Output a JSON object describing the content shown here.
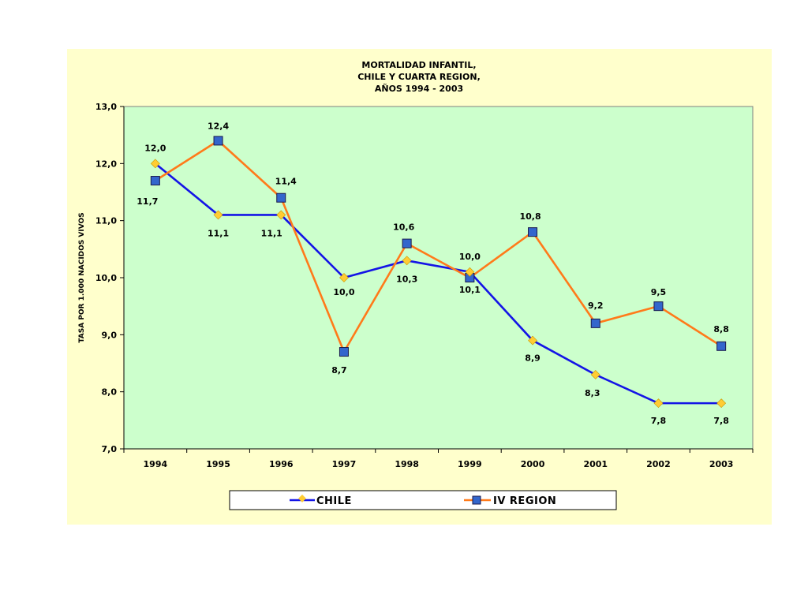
{
  "colors": {
    "outer_background": "#ffffcc",
    "plot_background": "#ccffcc",
    "chile_line": "#1414e6",
    "chile_marker": "#ffcc33",
    "region_line": "#ff7a1a",
    "region_marker": "#3366cc"
  },
  "chart_data": {
    "type": "line",
    "title_lines": [
      "MORTALIDAD INFANTIL,",
      "CHILE Y CUARTA REGION,",
      "AÑOS 1994 - 2003"
    ],
    "ylabel": "TASA POR 1.000 NACIDOS VIVOS",
    "xlabel": "",
    "categories": [
      "1994",
      "1995",
      "1996",
      "1997",
      "1998",
      "1999",
      "2000",
      "2001",
      "2002",
      "2003"
    ],
    "ylim": [
      7.0,
      13.0
    ],
    "yticks": [
      "7,0",
      "8,0",
      "9,0",
      "10,0",
      "11,0",
      "12,0",
      "13,0"
    ],
    "grid": false,
    "legend_position": "bottom",
    "series": [
      {
        "name": "CHILE",
        "values": [
          12.0,
          11.1,
          11.1,
          10.0,
          10.3,
          10.1,
          8.9,
          8.3,
          7.8,
          7.8
        ],
        "labels": [
          "12,0",
          "11,1",
          "11,1",
          "10,0",
          "10,3",
          "10,1",
          "8,9",
          "8,3",
          "7,8",
          "7,8"
        ]
      },
      {
        "name": "IV REGION",
        "values": [
          11.7,
          12.4,
          11.4,
          8.7,
          10.6,
          10.0,
          10.8,
          9.2,
          9.5,
          8.8
        ],
        "labels": [
          "11,7",
          "12,4",
          "11,4",
          "8,7",
          "10,6",
          "10,0",
          "10,8",
          "9,2",
          "9,5",
          "8,8"
        ]
      }
    ]
  }
}
